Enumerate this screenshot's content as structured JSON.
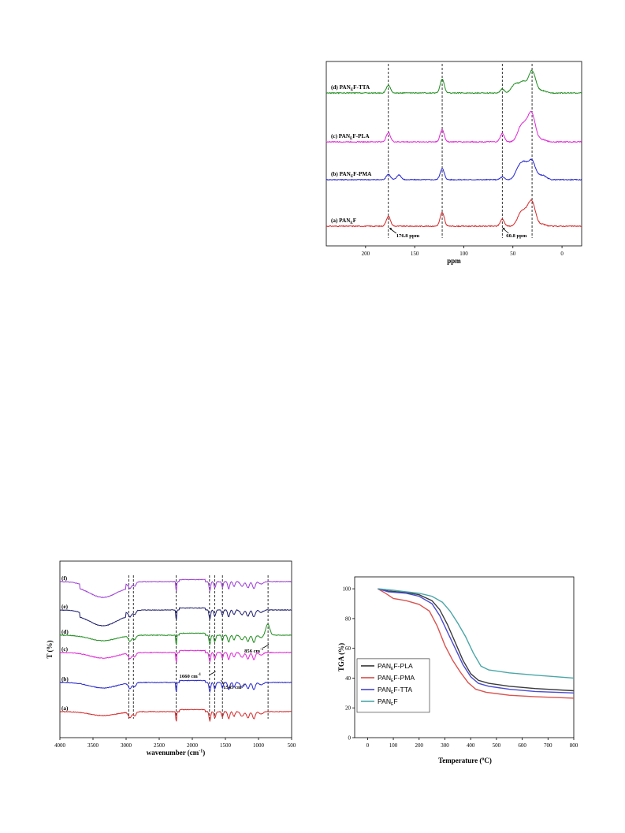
{
  "chart_data": [
    {
      "id": "nmr",
      "type": "line",
      "xlabel": "ppm",
      "ylabel": "",
      "xlim": [
        240,
        -20
      ],
      "x_ticks": [
        "200",
        "150",
        "100",
        "50",
        "0"
      ],
      "colors": {
        "a": "#d62728",
        "b": "#2424d0",
        "c": "#e024d6",
        "d": "#1e8c1e"
      },
      "series": [
        {
          "key": "a",
          "name": "(a) PAN",
          "sub": "E",
          "suffix": "F",
          "peaks": [
            [
              176.8,
              0.45
            ],
            [
              122,
              0.62
            ],
            [
              60.8,
              0.32
            ],
            [
              42,
              0.55
            ],
            [
              36,
              0.45
            ],
            [
              30.5,
              1.0
            ],
            [
              20,
              0.08
            ]
          ]
        },
        {
          "key": "b",
          "name": "(b) PAN",
          "sub": "E",
          "suffix": "F-PMA",
          "peaks": [
            [
              176.8,
              0.25
            ],
            [
              166,
              0.22
            ],
            [
              122,
              0.5
            ],
            [
              60.8,
              0.12
            ],
            [
              44,
              0.5
            ],
            [
              38,
              0.62
            ],
            [
              30.5,
              0.82
            ],
            [
              20,
              0.2
            ]
          ]
        },
        {
          "key": "c",
          "name": "(c) PAN",
          "sub": "E",
          "suffix": "F-PLA",
          "peaks": [
            [
              176.8,
              0.42
            ],
            [
              122,
              0.55
            ],
            [
              60.8,
              0.38
            ],
            [
              42,
              0.62
            ],
            [
              36,
              0.55
            ],
            [
              30.5,
              1.15
            ],
            [
              20,
              0.1
            ]
          ]
        },
        {
          "key": "d",
          "name": "(d) PAN",
          "sub": "E",
          "suffix": "F-TTA",
          "peaks": [
            [
              176.8,
              0.35
            ],
            [
              122,
              0.62
            ],
            [
              60.8,
              0.18
            ],
            [
              48,
              0.38
            ],
            [
              40,
              0.48
            ],
            [
              30.5,
              1.0
            ],
            [
              20,
              0.1
            ]
          ]
        }
      ],
      "dashed_lines": [
        176.8,
        122,
        60.8,
        30.5
      ],
      "annotations": [
        "176.8 ppm",
        "60.8 ppm"
      ]
    },
    {
      "id": "ftir",
      "type": "line",
      "xlabel": "wavenumber (cm",
      "xlabel_sup": "-1",
      "xlabel_end": ")",
      "ylabel": "T (%)",
      "xlim": [
        4000,
        500
      ],
      "x_ticks": [
        "4000",
        "3500",
        "3000",
        "2500",
        "2000",
        "1500",
        "1000",
        "500"
      ],
      "colors": {
        "a": "#d62728",
        "b": "#2424d0",
        "c": "#e024d6",
        "d": "#1e8c1e",
        "e": "#1c1c6e",
        "f": "#9b3ad6"
      },
      "series": [
        {
          "key": "a",
          "name": "(a)"
        },
        {
          "key": "b",
          "name": "(b)"
        },
        {
          "key": "c",
          "name": "(c)"
        },
        {
          "key": "d",
          "name": "(d)"
        },
        {
          "key": "e",
          "name": "(e)"
        },
        {
          "key": "f",
          "name": "(f)"
        }
      ],
      "dashed_lines": [
        2960,
        2890,
        2245,
        1740,
        1660,
        1545,
        856
      ],
      "annotations": [
        "1660 cm",
        "1545 cm",
        "856 cm"
      ],
      "annotation_sup": "-1"
    },
    {
      "id": "tga",
      "type": "line",
      "xlabel": "Temperature (",
      "xlabel_sup": "o",
      "xlabel_end": "C)",
      "ylabel": "TGA (%)",
      "xlim": [
        -50,
        800
      ],
      "ylim": [
        0,
        108
      ],
      "x_ticks": [
        0,
        100,
        200,
        300,
        400,
        500,
        600,
        700,
        800
      ],
      "y_ticks": [
        0,
        20,
        40,
        60,
        80,
        100
      ],
      "legend_position": "bottom-left",
      "series": [
        {
          "name": "PAN",
          "sub": "E",
          "suffix": "F-PLA",
          "color": "#3a3a3a",
          "points": [
            [
              40,
              100
            ],
            [
              80,
              98.5
            ],
            [
              150,
              97.5
            ],
            [
              200,
              96
            ],
            [
              250,
              92
            ],
            [
              280,
              86
            ],
            [
              310,
              76
            ],
            [
              340,
              64
            ],
            [
              370,
              52
            ],
            [
              400,
              43
            ],
            [
              430,
              38.5
            ],
            [
              470,
              36.5
            ],
            [
              550,
              34.5
            ],
            [
              650,
              33
            ],
            [
              800,
              31.5
            ]
          ]
        },
        {
          "name": "PAN",
          "sub": "E",
          "suffix": "F-PMA",
          "color": "#d9534f",
          "points": [
            [
              40,
              100
            ],
            [
              70,
              97
            ],
            [
              100,
              93.5
            ],
            [
              150,
              92
            ],
            [
              200,
              89.5
            ],
            [
              240,
              85
            ],
            [
              270,
              75
            ],
            [
              300,
              62
            ],
            [
              330,
              52
            ],
            [
              360,
              44
            ],
            [
              390,
              37
            ],
            [
              420,
              32.5
            ],
            [
              460,
              30.5
            ],
            [
              550,
              28.5
            ],
            [
              650,
              27.5
            ],
            [
              800,
              26.5
            ]
          ]
        },
        {
          "name": "PAN",
          "sub": "E",
          "suffix": "F-TTA",
          "color": "#4a4ad0",
          "points": [
            [
              40,
              100
            ],
            [
              80,
              98
            ],
            [
              150,
              97
            ],
            [
              200,
              95
            ],
            [
              250,
              90
            ],
            [
              280,
              82
            ],
            [
              310,
              71
            ],
            [
              340,
              60
            ],
            [
              370,
              49
            ],
            [
              400,
              41
            ],
            [
              430,
              36.5
            ],
            [
              470,
              34.5
            ],
            [
              550,
              32.5
            ],
            [
              650,
              31
            ],
            [
              800,
              30
            ]
          ]
        },
        {
          "name": "PAN",
          "sub": "E",
          "suffix": "F",
          "color": "#4aa6a8",
          "points": [
            [
              40,
              100
            ],
            [
              100,
              99
            ],
            [
              150,
              98
            ],
            [
              200,
              97
            ],
            [
              250,
              95
            ],
            [
              290,
              91
            ],
            [
              320,
              85
            ],
            [
              350,
              77
            ],
            [
              380,
              68
            ],
            [
              410,
              57
            ],
            [
              440,
              48
            ],
            [
              470,
              45.5
            ],
            [
              550,
              43.5
            ],
            [
              650,
              42
            ],
            [
              800,
              40
            ]
          ]
        }
      ]
    }
  ]
}
